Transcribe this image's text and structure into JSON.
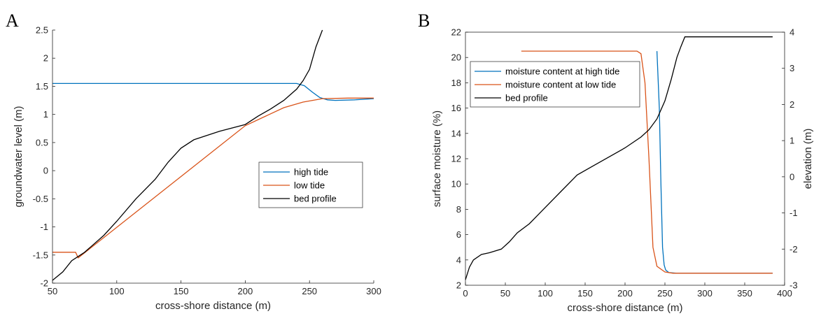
{
  "chart_data": [
    {
      "panel": "A",
      "type": "line",
      "xlabel": "cross-shore distance (m)",
      "ylabel": "groundwater level (m)",
      "xlim": [
        50,
        300
      ],
      "ylim": [
        -2,
        2.5
      ],
      "xticks": [
        "50",
        "100",
        "150",
        "200",
        "250",
        "300"
      ],
      "yticks": [
        "-2",
        "-1.5",
        "-1",
        "-0.5",
        "0",
        "0.5",
        "1",
        "1.5",
        "2",
        "2.5"
      ],
      "legend_position": "center-right",
      "series": [
        {
          "name": "high tide",
          "color": "#0072BD",
          "points": [
            [
              50,
              1.55
            ],
            [
              240,
              1.55
            ],
            [
              246,
              1.51
            ],
            [
              252,
              1.4
            ],
            [
              258,
              1.3
            ],
            [
              264,
              1.26
            ],
            [
              270,
              1.25
            ],
            [
              285,
              1.26
            ],
            [
              300,
              1.28
            ]
          ]
        },
        {
          "name": "low tide",
          "color": "#D95319",
          "points": [
            [
              50,
              -1.45
            ],
            [
              68,
              -1.45
            ],
            [
              70,
              -1.55
            ],
            [
              200,
              0.8
            ],
            [
              215,
              0.96
            ],
            [
              230,
              1.12
            ],
            [
              245,
              1.22
            ],
            [
              260,
              1.28
            ],
            [
              280,
              1.29
            ],
            [
              300,
              1.29
            ]
          ]
        },
        {
          "name": "bed profile",
          "color": "#000000",
          "points": [
            [
              50,
              -1.95
            ],
            [
              58,
              -1.8
            ],
            [
              65,
              -1.6
            ],
            [
              75,
              -1.45
            ],
            [
              90,
              -1.15
            ],
            [
              100,
              -0.9
            ],
            [
              115,
              -0.5
            ],
            [
              130,
              -0.15
            ],
            [
              140,
              0.15
            ],
            [
              150,
              0.4
            ],
            [
              160,
              0.55
            ],
            [
              180,
              0.7
            ],
            [
              200,
              0.82
            ],
            [
              210,
              0.97
            ],
            [
              220,
              1.1
            ],
            [
              230,
              1.25
            ],
            [
              240,
              1.45
            ],
            [
              245,
              1.6
            ],
            [
              250,
              1.8
            ],
            [
              255,
              2.2
            ],
            [
              260,
              2.5
            ]
          ]
        }
      ]
    },
    {
      "panel": "B",
      "type": "line",
      "xlabel": "cross-shore distance (m)",
      "ylabel": "surface moisture (%)",
      "y2label": "elevation (m)",
      "xlim": [
        0,
        400
      ],
      "ylim": [
        2,
        22
      ],
      "y2lim": [
        -3,
        4
      ],
      "xticks": [
        "0",
        "50",
        "100",
        "150",
        "200",
        "250",
        "300",
        "350",
        "400"
      ],
      "yticks": [
        "2",
        "4",
        "6",
        "8",
        "10",
        "12",
        "14",
        "16",
        "18",
        "20",
        "22"
      ],
      "y2ticks": [
        "-3",
        "-2",
        "-1",
        "0",
        "1",
        "2",
        "3",
        "4"
      ],
      "legend_position": "top-left",
      "series": [
        {
          "name": "moisture content at high tide",
          "color": "#0072BD",
          "axis": "left",
          "points": [
            [
              240,
              20.5
            ],
            [
              243,
              16
            ],
            [
              245,
              10
            ],
            [
              247,
              5
            ],
            [
              249,
              3.6
            ],
            [
              251,
              3.2
            ],
            [
              255,
              3.0
            ],
            [
              265,
              2.95
            ],
            [
              385,
              2.95
            ]
          ]
        },
        {
          "name": "moisture content at low tide",
          "color": "#D95319",
          "axis": "left",
          "points": [
            [
              70,
              20.5
            ],
            [
              215,
              20.5
            ],
            [
              220,
              20.3
            ],
            [
              225,
              18
            ],
            [
              230,
              12
            ],
            [
              235,
              5
            ],
            [
              240,
              3.5
            ],
            [
              250,
              3.05
            ],
            [
              260,
              2.95
            ],
            [
              385,
              2.95
            ]
          ]
        },
        {
          "name": "bed profile",
          "color": "#000000",
          "axis": "right",
          "points": [
            [
              0,
              -2.85
            ],
            [
              5,
              -2.5
            ],
            [
              10,
              -2.3
            ],
            [
              20,
              -2.15
            ],
            [
              30,
              -2.1
            ],
            [
              45,
              -2.0
            ],
            [
              55,
              -1.8
            ],
            [
              65,
              -1.55
            ],
            [
              80,
              -1.3
            ],
            [
              100,
              -0.85
            ],
            [
              120,
              -0.4
            ],
            [
              140,
              0.05
            ],
            [
              160,
              0.3
            ],
            [
              180,
              0.55
            ],
            [
              200,
              0.8
            ],
            [
              220,
              1.1
            ],
            [
              230,
              1.3
            ],
            [
              240,
              1.6
            ],
            [
              250,
              2.1
            ],
            [
              258,
              2.7
            ],
            [
              265,
              3.3
            ],
            [
              270,
              3.6
            ],
            [
              275,
              3.87
            ],
            [
              300,
              3.87
            ],
            [
              385,
              3.87
            ]
          ]
        }
      ]
    }
  ]
}
